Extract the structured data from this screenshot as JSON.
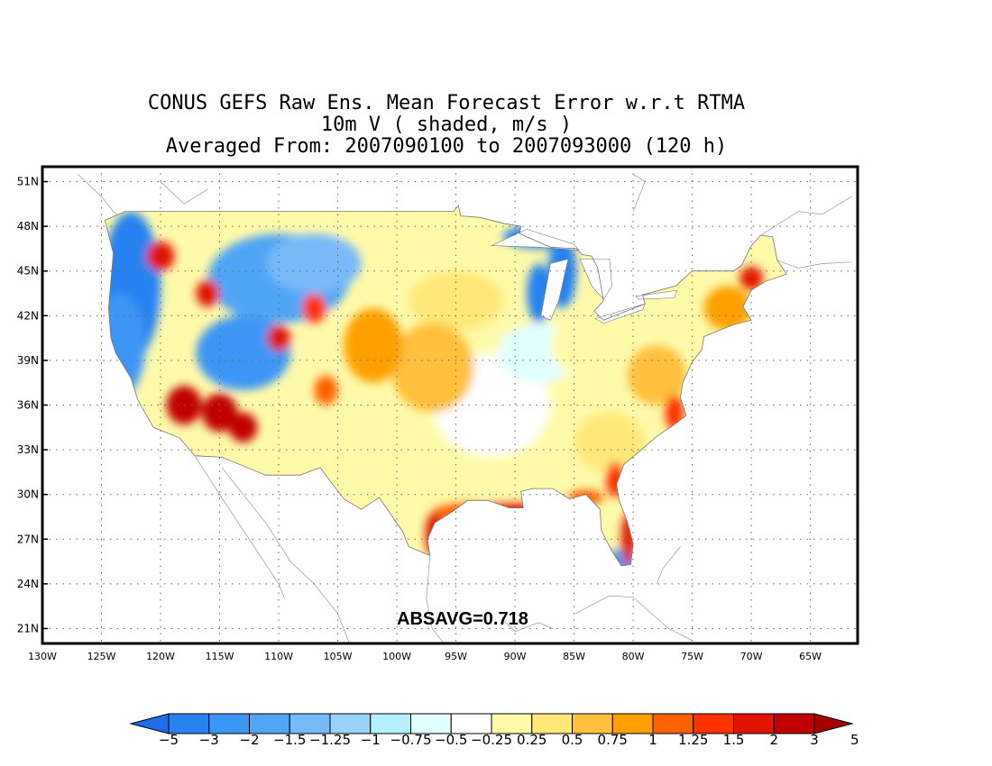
{
  "title": {
    "line1": "CONUS GEFS Raw Ens. Mean Forecast Error w.r.t RTMA",
    "line2": "10m V ( shaded, m/s )",
    "line3": "Averaged From: 2007090100 to 2007093000 (120 h)"
  },
  "map": {
    "lat_labels": [
      "51N",
      "48N",
      "45N",
      "42N",
      "39N",
      "36N",
      "33N",
      "30N",
      "27N",
      "24N",
      "21N"
    ],
    "lat_values": [
      51,
      48,
      45,
      42,
      39,
      36,
      33,
      30,
      27,
      24,
      21
    ],
    "lon_labels": [
      "130W",
      "125W",
      "120W",
      "115W",
      "110W",
      "105W",
      "100W",
      "95W",
      "90W",
      "85W",
      "80W",
      "75W",
      "70W",
      "65W"
    ],
    "lon_values": [
      -130,
      -125,
      -120,
      -115,
      -110,
      -105,
      -100,
      -95,
      -90,
      -85,
      -80,
      -75,
      -70,
      -65
    ],
    "extent": {
      "lon_min": -130,
      "lon_max": -61,
      "lat_min": 20,
      "lat_max": 52
    },
    "grid": true,
    "annotation": "ABSAVG=0.718"
  },
  "colorbar": {
    "colors": [
      "#1e6eeb",
      "#2882f0",
      "#3c96f5",
      "#50a5f5",
      "#78b9fa",
      "#96d2fa",
      "#b4f0fa",
      "#e1ffff",
      "#ffffff",
      "#fffaaa",
      "#ffe878",
      "#ffc03c",
      "#ffa000",
      "#ff6000",
      "#ff3200",
      "#e11400",
      "#c00000",
      "#a50000"
    ],
    "labels": [
      "−5",
      "−3",
      "−2",
      "−1.5",
      "−1.25",
      "−1",
      "−0.75",
      "−0.5",
      "−0.25",
      "0.25",
      "0.5",
      "0.75",
      "1",
      "1.25",
      "1.5",
      "2",
      "3",
      "5"
    ]
  },
  "field_blobs": [
    {
      "lon": -122.5,
      "lat": 44.0,
      "rx": 2.5,
      "ry": 5.0,
      "color": "#2882f0"
    },
    {
      "lon": -123.5,
      "lat": 40.0,
      "rx": 2.2,
      "ry": 3.5,
      "color": "#3c96f5"
    },
    {
      "lon": -110.0,
      "lat": 44.5,
      "rx": 6.0,
      "ry": 3.0,
      "color": "#50a5f5"
    },
    {
      "lon": -107.0,
      "lat": 45.5,
      "rx": 4.0,
      "ry": 2.0,
      "color": "#78b9fa"
    },
    {
      "lon": -113.0,
      "lat": 39.5,
      "rx": 4.0,
      "ry": 2.5,
      "color": "#3c96f5"
    },
    {
      "lon": -88.0,
      "lat": 43.5,
      "rx": 1.0,
      "ry": 2.0,
      "color": "#2882f0"
    },
    {
      "lon": -86.0,
      "lat": 45.0,
      "rx": 1.2,
      "ry": 2.5,
      "color": "#2882f0"
    },
    {
      "lon": -88.0,
      "lat": 47.3,
      "rx": 3.0,
      "ry": 0.8,
      "color": "#2882f0"
    },
    {
      "lon": -82.0,
      "lat": 44.8,
      "rx": 1.0,
      "ry": 1.2,
      "color": "#50a5f5"
    },
    {
      "lon": -81.0,
      "lat": 25.5,
      "rx": 1.5,
      "ry": 0.8,
      "color": "#3c96f5"
    },
    {
      "lon": -92.0,
      "lat": 36.0,
      "rx": 5.0,
      "ry": 3.5,
      "color": "#ffffff"
    },
    {
      "lon": -88.0,
      "lat": 39.5,
      "rx": 3.5,
      "ry": 2.0,
      "color": "#e1ffff"
    },
    {
      "lon": -95.0,
      "lat": 43.0,
      "rx": 4.0,
      "ry": 2.0,
      "color": "#ffe878"
    },
    {
      "lon": -97.0,
      "lat": 38.5,
      "rx": 3.5,
      "ry": 3.0,
      "color": "#ffc03c"
    },
    {
      "lon": -102.0,
      "lat": 40.0,
      "rx": 2.5,
      "ry": 2.5,
      "color": "#ffa000"
    },
    {
      "lon": -84.0,
      "lat": 40.0,
      "rx": 3.0,
      "ry": 2.0,
      "color": "#fffaaa"
    },
    {
      "lon": -78.0,
      "lat": 38.0,
      "rx": 2.5,
      "ry": 2.0,
      "color": "#ffc03c"
    },
    {
      "lon": -82.0,
      "lat": 33.5,
      "rx": 3.0,
      "ry": 2.0,
      "color": "#ffe878"
    },
    {
      "lon": -118.0,
      "lat": 36.0,
      "rx": 1.5,
      "ry": 1.3,
      "color": "#c00000"
    },
    {
      "lon": -115.0,
      "lat": 35.5,
      "rx": 1.5,
      "ry": 1.3,
      "color": "#c00000"
    },
    {
      "lon": -120.0,
      "lat": 46.0,
      "rx": 1.2,
      "ry": 1.0,
      "color": "#e11400"
    },
    {
      "lon": -116.0,
      "lat": 43.5,
      "rx": 1.0,
      "ry": 0.9,
      "color": "#e11400"
    },
    {
      "lon": -113.0,
      "lat": 34.5,
      "rx": 1.2,
      "ry": 1.0,
      "color": "#c00000"
    },
    {
      "lon": -106.0,
      "lat": 37.0,
      "rx": 1.0,
      "ry": 1.0,
      "color": "#ff6000"
    },
    {
      "lon": -107.0,
      "lat": 42.5,
      "rx": 1.0,
      "ry": 1.0,
      "color": "#ff3200"
    },
    {
      "lon": -110.0,
      "lat": 40.5,
      "rx": 1.0,
      "ry": 0.9,
      "color": "#e11400"
    },
    {
      "lon": -94.0,
      "lat": 28.8,
      "rx": 3.0,
      "ry": 0.6,
      "color": "#ff6000"
    },
    {
      "lon": -90.0,
      "lat": 28.7,
      "rx": 4.0,
      "ry": 0.7,
      "color": "#e11400"
    },
    {
      "lon": -96.8,
      "lat": 27.3,
      "rx": 0.8,
      "ry": 1.5,
      "color": "#e11400"
    },
    {
      "lon": -80.4,
      "lat": 27.0,
      "rx": 0.6,
      "ry": 1.8,
      "color": "#e11400"
    },
    {
      "lon": -81.5,
      "lat": 31.0,
      "rx": 0.8,
      "ry": 1.2,
      "color": "#ff3200"
    },
    {
      "lon": -76.5,
      "lat": 35.5,
      "rx": 0.8,
      "ry": 1.2,
      "color": "#ff3200"
    },
    {
      "lon": -72.0,
      "lat": 42.5,
      "rx": 2.0,
      "ry": 1.5,
      "color": "#ffa000"
    },
    {
      "lon": -70.0,
      "lat": 44.5,
      "rx": 1.0,
      "ry": 0.8,
      "color": "#e11400"
    },
    {
      "lon": -84.0,
      "lat": 29.8,
      "rx": 1.5,
      "ry": 0.5,
      "color": "#ff6000"
    }
  ]
}
